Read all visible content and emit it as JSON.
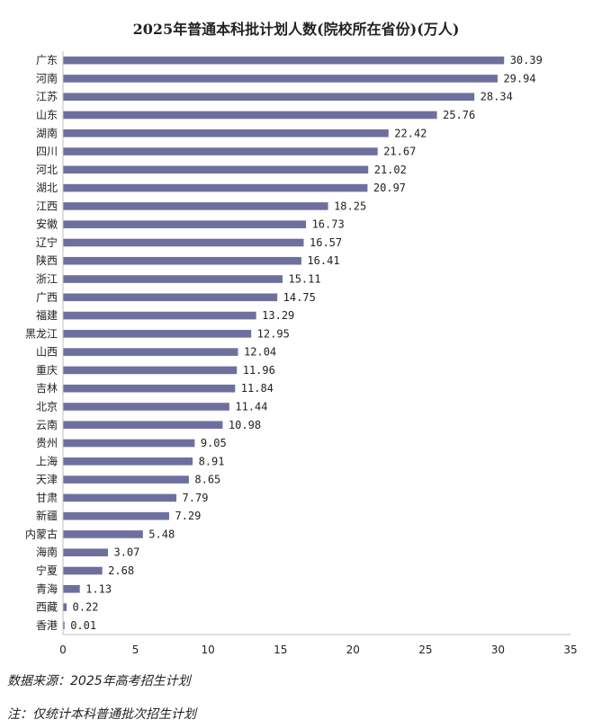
{
  "notes": {
    "source": "数据来源：2025年高考招生计划",
    "footnote": "注：仅统计本科普通批次招生计划"
  },
  "colors": {
    "bar": "#6f6f9f",
    "axis": "#bfbfbf",
    "text": "#222222"
  },
  "chart_data": {
    "type": "bar",
    "orientation": "horizontal",
    "title": "2025年普通本科批计划人数(院校所在省份)(万人)",
    "categories": [
      "广东",
      "河南",
      "江苏",
      "山东",
      "湖南",
      "四川",
      "河北",
      "湖北",
      "江西",
      "安徽",
      "辽宁",
      "陕西",
      "浙江",
      "广西",
      "福建",
      "黑龙江",
      "山西",
      "重庆",
      "吉林",
      "北京",
      "云南",
      "贵州",
      "上海",
      "天津",
      "甘肃",
      "新疆",
      "内蒙古",
      "海南",
      "宁夏",
      "青海",
      "西藏",
      "香港"
    ],
    "values": [
      30.39,
      29.94,
      28.34,
      25.76,
      22.42,
      21.67,
      21.02,
      20.97,
      18.25,
      16.73,
      16.57,
      16.41,
      15.11,
      14.75,
      13.29,
      12.95,
      12.04,
      11.96,
      11.84,
      11.44,
      10.98,
      9.05,
      8.91,
      8.65,
      7.79,
      7.29,
      5.48,
      3.07,
      2.68,
      1.13,
      0.22,
      0.01
    ],
    "value_labels": [
      "30.39",
      "29.94",
      "28.34",
      "25.76",
      "22.42",
      "21.67",
      "21.02",
      "20.97",
      "18.25",
      "16.73",
      "16.57",
      "16.41",
      "15.11",
      "14.75",
      "13.29",
      "12.95",
      "12.04",
      "11.96",
      "11.84",
      "11.44",
      "10.98",
      "9.05",
      "8.91",
      "8.65",
      "7.79",
      "7.29",
      "5.48",
      "3.07",
      "2.68",
      "1.13",
      "0.22",
      "0.01"
    ],
    "xlim": [
      0,
      35
    ],
    "xticks": [
      "0",
      "5",
      "10",
      "15",
      "20",
      "25",
      "30",
      "35"
    ],
    "grid": false,
    "legend": "none"
  }
}
